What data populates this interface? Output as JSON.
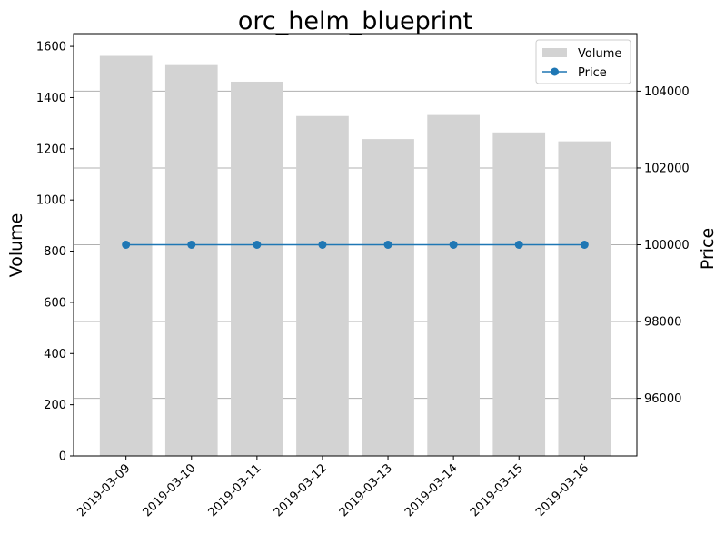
{
  "chart_data": {
    "type": "bar",
    "title": "orc_helm_blueprint",
    "xlabel": "",
    "ylabel": "Volume",
    "y2label": "Price",
    "categories": [
      "2019-03-09",
      "2019-03-10",
      "2019-03-11",
      "2019-03-12",
      "2019-03-13",
      "2019-03-14",
      "2019-03-15",
      "2019-03-16"
    ],
    "series": [
      {
        "name": "Volume",
        "type": "bar",
        "axis": "left",
        "color": "#d3d3d3",
        "values": [
          1563,
          1527,
          1462,
          1328,
          1238,
          1332,
          1264,
          1229
        ]
      },
      {
        "name": "Price",
        "type": "line",
        "axis": "right",
        "color": "#1f77b4",
        "values": [
          100000,
          100000,
          100000,
          100000,
          100000,
          100000,
          100000,
          100000
        ]
      }
    ],
    "ylim": [
      0,
      1650
    ],
    "y2lim": [
      94500,
      105500
    ],
    "yticks": [
      0,
      200,
      400,
      600,
      800,
      1000,
      1200,
      1400,
      1600
    ],
    "y2ticks": [
      96000,
      98000,
      100000,
      102000,
      104000
    ],
    "grid": "horizontal lines at right-axis ticks",
    "legend": "top-right"
  }
}
